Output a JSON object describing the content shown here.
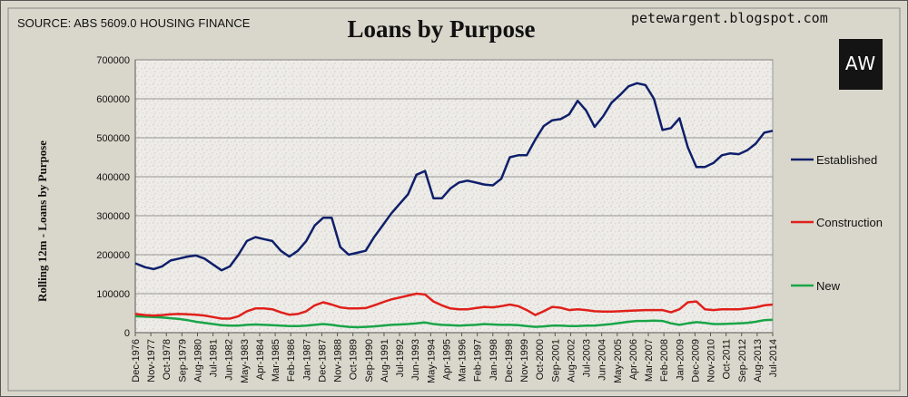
{
  "header": {
    "source": "SOURCE: ABS 5609.0 HOUSING FINANCE",
    "blog": "petewargent.blogspot.com",
    "logo_text": "AW"
  },
  "chart_data": {
    "type": "line",
    "title": "Loans by Purpose",
    "ylabel": "Rolling 12m - Loans by Purpose",
    "xlabel": "",
    "ylim": [
      0,
      700000
    ],
    "yticks": [
      0,
      100000,
      200000,
      300000,
      400000,
      500000,
      600000,
      700000
    ],
    "ytick_labels": [
      "0",
      "100000",
      "200000",
      "300000",
      "400000",
      "500000",
      "600000",
      "700000"
    ],
    "grid": true,
    "legend": "right",
    "x": [
      1976.92,
      1977.5,
      1978,
      1978.5,
      1979,
      1979.5,
      1980,
      1980.5,
      1981,
      1981.5,
      1982,
      1982.5,
      1983,
      1983.5,
      1984,
      1984.5,
      1985,
      1985.5,
      1986,
      1986.5,
      1987,
      1987.5,
      1988,
      1988.5,
      1989,
      1989.5,
      1990,
      1990.5,
      1991,
      1991.5,
      1992,
      1992.5,
      1993,
      1993.5,
      1994,
      1994.5,
      1995,
      1995.5,
      1996,
      1996.5,
      1997,
      1997.5,
      1998,
      1998.5,
      1999,
      1999.5,
      2000,
      2000.5,
      2001,
      2001.5,
      2002,
      2002.5,
      2003,
      2003.5,
      2004,
      2004.5,
      2005,
      2005.5,
      2006,
      2006.5,
      2007,
      2007.5,
      2008,
      2008.5,
      2009,
      2009.5,
      2010,
      2010.5,
      2011,
      2011.5,
      2012,
      2012.5,
      2013,
      2013.5,
      2014,
      2014.5
    ],
    "x_tick_labels": [
      "Dec-1976",
      "Nov-1977",
      "Oct-1978",
      "Sep-1979",
      "Aug-1980",
      "Jul-1981",
      "Jun-1982",
      "May-1983",
      "Apr-1984",
      "Mar-1985",
      "Feb-1986",
      "Jan-1987",
      "Dec-1987",
      "Nov-1988",
      "Oct-1989",
      "Sep-1990",
      "Aug-1991",
      "Jul-1992",
      "Jun-1993",
      "May-1994",
      "Apr-1995",
      "Mar-1996",
      "Feb-1997",
      "Jan-1998",
      "Dec-1998",
      "Nov-1999",
      "Oct-2000",
      "Sep-2001",
      "Aug-2002",
      "Jul-2003",
      "Jun-2004",
      "May-2005",
      "Apr-2006",
      "Mar-2007",
      "Feb-2008",
      "Jan-2009",
      "Dec-2009",
      "Nov-2010",
      "Oct-2011",
      "Sep-2012",
      "Aug-2013",
      "Jul-2014"
    ],
    "series": [
      {
        "name": "Established",
        "color": "#0e1f6b",
        "values": [
          178000,
          168000,
          163000,
          170000,
          185000,
          190000,
          195000,
          198000,
          190000,
          175000,
          160000,
          170000,
          200000,
          235000,
          245000,
          240000,
          235000,
          210000,
          195000,
          210000,
          235000,
          275000,
          295000,
          295000,
          220000,
          200000,
          205000,
          210000,
          245000,
          275000,
          305000,
          330000,
          355000,
          405000,
          415000,
          345000,
          345000,
          370000,
          385000,
          390000,
          385000,
          380000,
          378000,
          395000,
          450000,
          455000,
          455000,
          495000,
          530000,
          545000,
          548000,
          560000,
          595000,
          570000,
          528000,
          555000,
          590000,
          610000,
          632000,
          640000,
          635000,
          600000,
          520000,
          525000,
          550000,
          475000,
          425000,
          425000,
          435000,
          455000,
          460000,
          458000,
          468000,
          485000,
          513000,
          518000
        ]
      },
      {
        "name": "Construction",
        "color": "#e0201b",
        "values": [
          48000,
          45000,
          44000,
          45000,
          47000,
          48000,
          47000,
          46000,
          44000,
          40000,
          36000,
          36000,
          42000,
          55000,
          62000,
          62000,
          60000,
          52000,
          46000,
          48000,
          55000,
          70000,
          78000,
          72000,
          65000,
          62000,
          62000,
          63000,
          70000,
          78000,
          85000,
          90000,
          95000,
          100000,
          98000,
          80000,
          70000,
          62000,
          60000,
          60000,
          63000,
          66000,
          65000,
          68000,
          72000,
          68000,
          58000,
          45000,
          55000,
          66000,
          64000,
          58000,
          60000,
          58000,
          55000,
          54000,
          54000,
          55000,
          56000,
          57000,
          58000,
          58000,
          58000,
          52000,
          60000,
          78000,
          80000,
          60000,
          58000,
          60000,
          60000,
          60000,
          62000,
          65000,
          70000,
          72000
        ]
      },
      {
        "name": "New",
        "color": "#19a548",
        "values": [
          42000,
          41000,
          40000,
          39000,
          37000,
          35000,
          32000,
          28000,
          25000,
          22000,
          19000,
          18000,
          18000,
          20000,
          21000,
          20000,
          19000,
          18000,
          17000,
          17000,
          18000,
          20000,
          22000,
          20000,
          17000,
          15000,
          14000,
          15000,
          16000,
          18000,
          20000,
          21000,
          22000,
          24000,
          26000,
          22000,
          20000,
          19000,
          18000,
          19000,
          20000,
          22000,
          21000,
          20000,
          20000,
          19000,
          17000,
          15000,
          16000,
          18000,
          18000,
          17000,
          17000,
          18000,
          18000,
          20000,
          22000,
          25000,
          28000,
          30000,
          30000,
          31000,
          30000,
          24000,
          20000,
          24000,
          27000,
          25000,
          22000,
          22000,
          23000,
          24000,
          25000,
          28000,
          32000,
          33000
        ]
      }
    ]
  }
}
